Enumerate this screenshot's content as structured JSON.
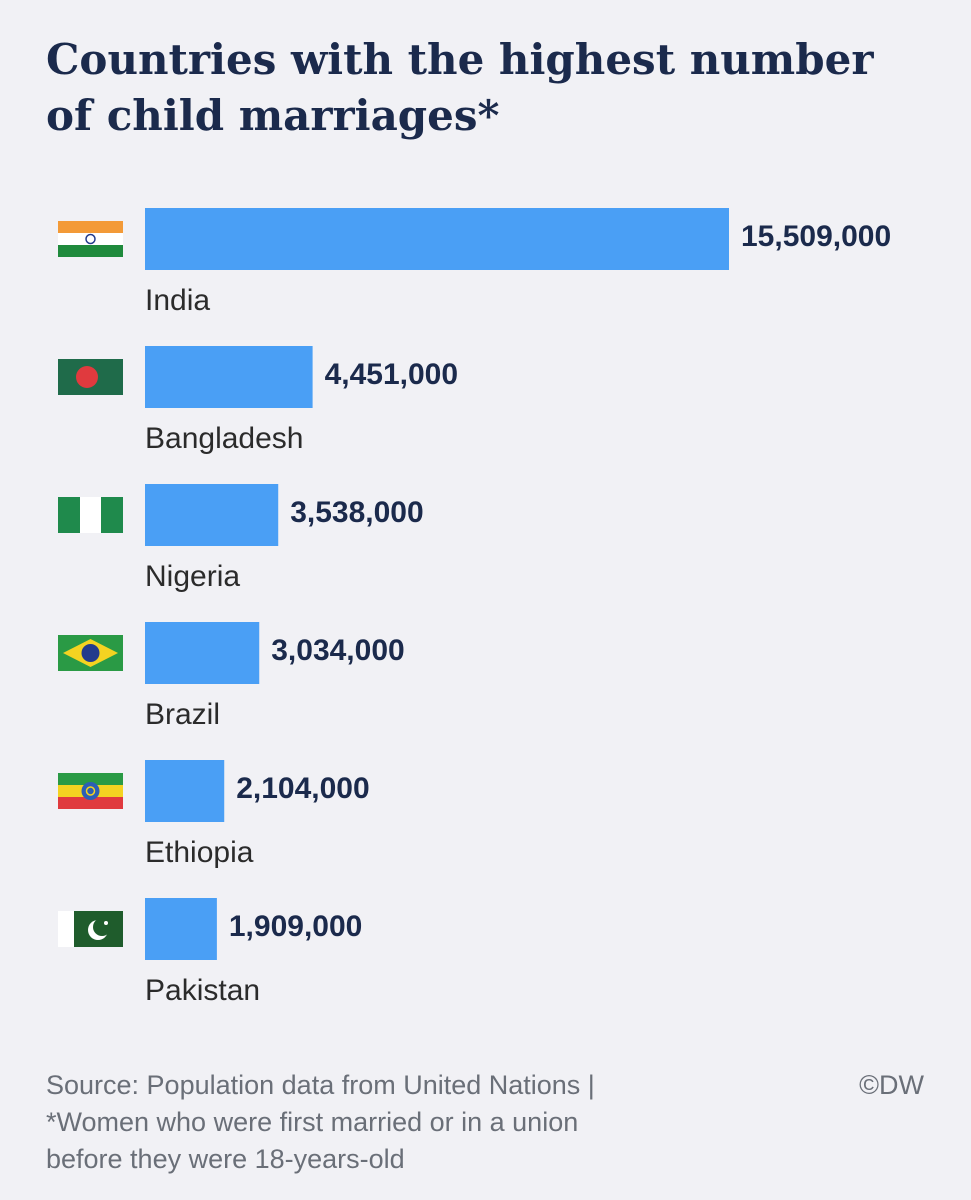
{
  "chart_data": {
    "type": "bar",
    "orientation": "horizontal",
    "title": "Countries with the highest number of child marriages*",
    "categories": [
      "India",
      "Bangladesh",
      "Nigeria",
      "Brazil",
      "Ethiopia",
      "Pakistan"
    ],
    "values": [
      15509000,
      4451000,
      3538000,
      3034000,
      2104000,
      1909000
    ],
    "value_labels": [
      "15,509,000",
      "4,451,000",
      "3,538,000",
      "3,034,000",
      "2,104,000",
      "1,909,000"
    ],
    "color": "#4a9ff5",
    "notes": [
      "Source: Population data from United Nations |",
      "*Women who were first married or in a union",
      "before they were 18-years-old"
    ],
    "credit": "©DW"
  }
}
